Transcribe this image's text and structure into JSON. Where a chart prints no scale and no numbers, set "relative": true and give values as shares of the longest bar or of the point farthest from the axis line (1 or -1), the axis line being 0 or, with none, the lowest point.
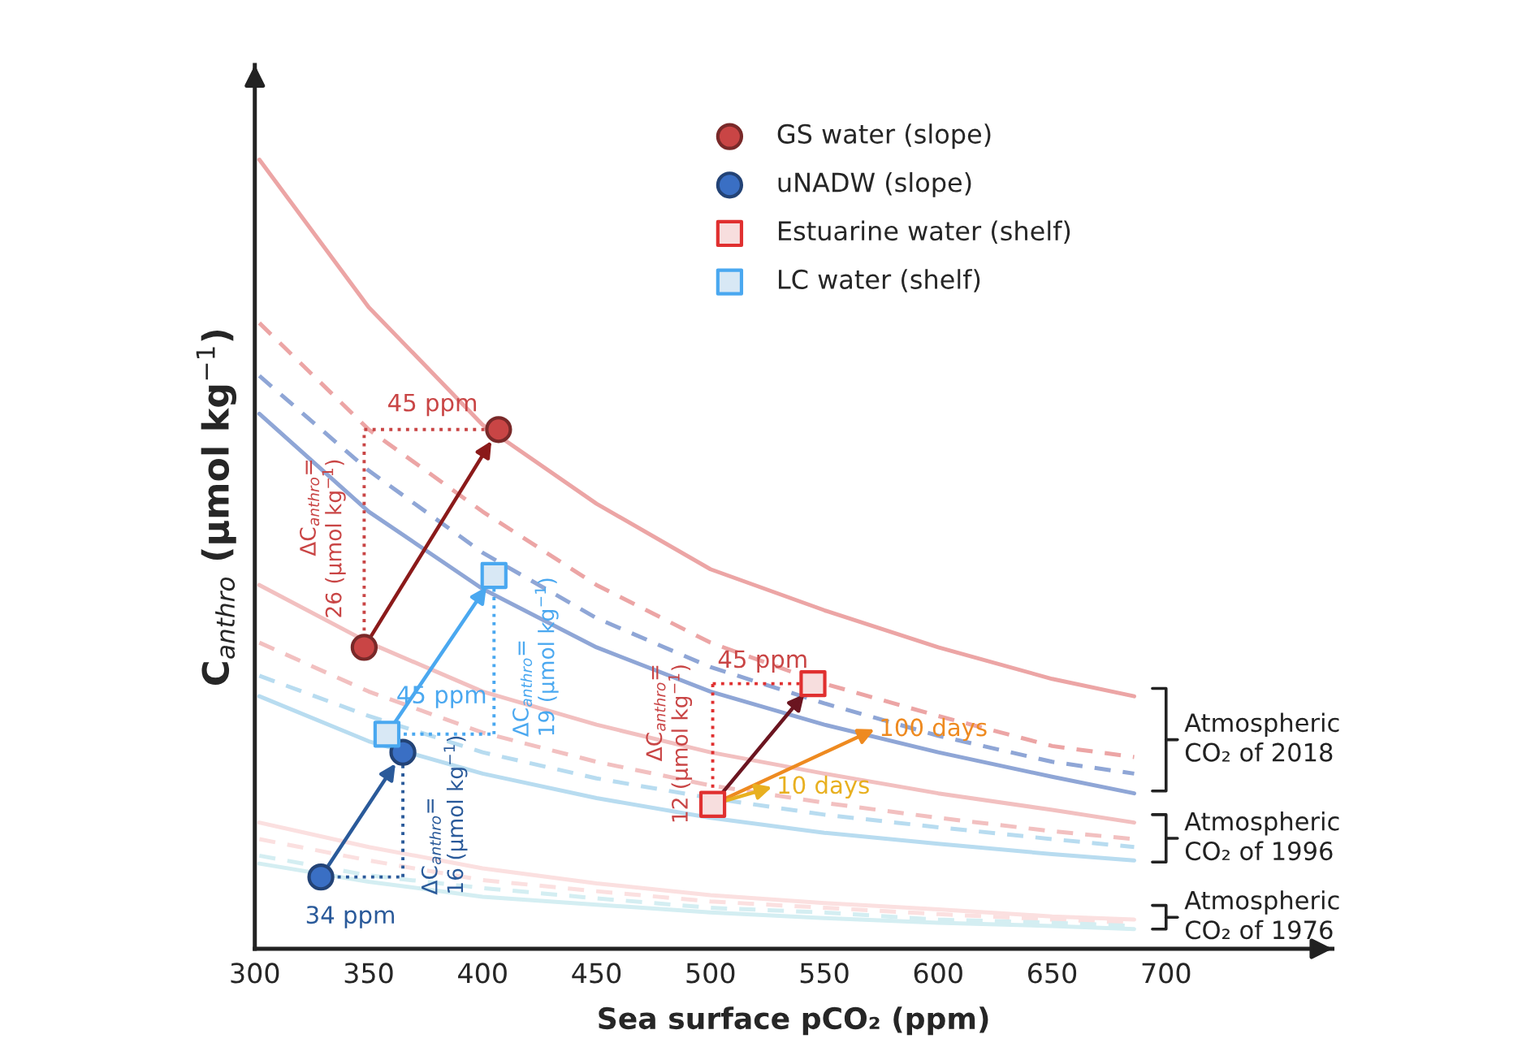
{
  "chart_data": {
    "type": "line",
    "relative": true,
    "xlabel": "Sea surface pCO₂ (ppm)",
    "ylabel": "C$_{anthro}$ (μmol kg$^{−1}$)",
    "xlim": [
      300,
      773
    ],
    "xticks": [
      300,
      350,
      400,
      450,
      500,
      550,
      600,
      650,
      700
    ],
    "grid": false,
    "legend": "top right",
    "series": [
      {
        "line_style": "solid",
        "color": "#eca5a5",
        "x": [
          302,
          350,
          400,
          450,
          500,
          550,
          600,
          650,
          686
        ],
        "values": [
          1.0,
          0.813,
          0.664,
          0.564,
          0.481,
          0.429,
          0.382,
          0.342,
          0.32
        ]
      },
      {
        "line_style": "dashed",
        "color": "#eca5a5",
        "x": [
          302,
          350,
          400,
          450,
          500,
          550,
          600,
          650,
          686
        ],
        "values": [
          0.793,
          0.658,
          0.554,
          0.461,
          0.388,
          0.336,
          0.295,
          0.257,
          0.243
        ]
      },
      {
        "line_style": "dashed",
        "color": "#8fa6d6",
        "x": [
          302,
          350,
          400,
          450,
          500,
          550,
          600,
          650,
          686
        ],
        "values": [
          0.726,
          0.606,
          0.502,
          0.419,
          0.357,
          0.311,
          0.27,
          0.237,
          0.222
        ]
      },
      {
        "line_style": "solid",
        "color": "#8fa6d6",
        "x": [
          302,
          350,
          400,
          450,
          500,
          550,
          600,
          650,
          686
        ],
        "values": [
          0.678,
          0.554,
          0.456,
          0.382,
          0.326,
          0.284,
          0.249,
          0.218,
          0.197
        ]
      },
      {
        "line_style": "solid",
        "color": "#f2c0c0",
        "x": [
          302,
          350,
          400,
          450,
          500,
          550,
          600,
          650,
          686
        ],
        "values": [
          0.461,
          0.388,
          0.326,
          0.284,
          0.249,
          0.222,
          0.197,
          0.176,
          0.16
        ]
      },
      {
        "line_style": "dashed",
        "color": "#f2c0c0",
        "x": [
          302,
          350,
          400,
          450,
          500,
          550,
          600,
          650,
          686
        ],
        "values": [
          0.388,
          0.326,
          0.274,
          0.237,
          0.207,
          0.185,
          0.166,
          0.149,
          0.139
        ]
      },
      {
        "line_style": "dashed",
        "color": "#b8dcf0",
        "x": [
          302,
          350,
          400,
          450,
          500,
          550,
          600,
          650,
          686
        ],
        "values": [
          0.346,
          0.295,
          0.249,
          0.216,
          0.191,
          0.17,
          0.154,
          0.139,
          0.129
        ]
      },
      {
        "line_style": "solid",
        "color": "#b8dcf0",
        "x": [
          302,
          350,
          400,
          450,
          500,
          550,
          600,
          650,
          686
        ],
        "values": [
          0.32,
          0.263,
          0.222,
          0.191,
          0.166,
          0.147,
          0.133,
          0.12,
          0.112
        ]
      },
      {
        "line_style": "solid",
        "color": "#fbe0e0",
        "x": [
          302,
          350,
          400,
          450,
          500,
          550,
          600,
          650,
          686
        ],
        "values": [
          0.16,
          0.129,
          0.102,
          0.083,
          0.068,
          0.058,
          0.05,
          0.041,
          0.037
        ]
      },
      {
        "line_style": "dashed",
        "color": "#fbe0e0",
        "x": [
          302,
          350,
          400,
          450,
          500,
          550,
          600,
          650,
          686
        ],
        "values": [
          0.139,
          0.112,
          0.087,
          0.073,
          0.06,
          0.052,
          0.044,
          0.037,
          0.033
        ]
      },
      {
        "line_style": "dashed",
        "color": "#d4eef2",
        "x": [
          302,
          350,
          400,
          450,
          500,
          550,
          600,
          650,
          686
        ],
        "values": [
          0.118,
          0.093,
          0.077,
          0.064,
          0.052,
          0.046,
          0.037,
          0.033,
          0.029
        ]
      },
      {
        "line_style": "solid",
        "color": "#d4eef2",
        "x": [
          302,
          350,
          400,
          450,
          500,
          550,
          600,
          650,
          686
        ],
        "values": [
          0.108,
          0.085,
          0.066,
          0.056,
          0.046,
          0.039,
          0.033,
          0.029,
          0.025
        ]
      },
      {
        "type": "scatter",
        "name": "GS water (slope)",
        "marker": "circle",
        "color": "#c94545",
        "x": [
          348,
          407
        ],
        "values": [
          0.382,
          0.658
        ]
      },
      {
        "type": "scatter",
        "name": "uNADW (slope)",
        "marker": "circle",
        "color": "#3a6fc4",
        "x": [
          329,
          365
        ],
        "values": [
          0.091,
          0.249
        ]
      },
      {
        "type": "scatter",
        "name": "Estuarine water (shelf)",
        "marker": "square",
        "color": "#f7dede",
        "x": [
          501,
          545
        ],
        "values": [
          0.183,
          0.336
        ]
      },
      {
        "type": "scatter",
        "name": "LC water (shelf)",
        "marker": "square",
        "color": "#d8e8f5",
        "x": [
          358,
          405
        ],
        "values": [
          0.272,
          0.473
        ]
      }
    ],
    "annotations": [
      "45 ppm",
      "ΔC$_{anthro}$=\n26 (μmol kg$^{−1}$)",
      "45 ppm",
      "ΔC$_{anthro}$=\n19 (μmol kg$^{−1}$)",
      "34 ppm",
      "ΔC$_{anthro}$=\n16 (μmol kg$^{−1}$)",
      "45 ppm",
      "ΔC$_{anthro}$=\n12 (μmol kg$^{−1}$)",
      {
        "text": "100 days",
        "x": 572,
        "y": 0.278
      },
      {
        "text": "10 days",
        "x": 527,
        "y": 0.205
      },
      "Atmospheric\nCO₂ of 2018",
      "Atmospheric\nCO₂ of 1996",
      "Atmospheric\nCO₂ of 1976"
    ]
  }
}
